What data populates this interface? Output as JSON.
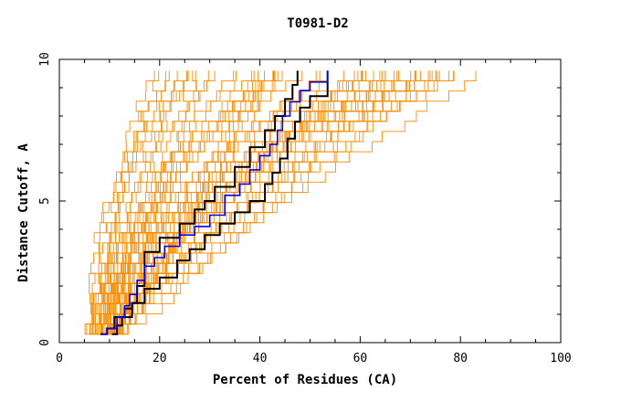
{
  "chart_data": {
    "type": "line",
    "title": "T0981-D2",
    "xlabel": "Percent of Residues (CA)",
    "ylabel": "Distance Cutoff, A",
    "xlim": [
      0,
      100
    ],
    "ylim": [
      0,
      10
    ],
    "x_ticks": [
      "0",
      "20",
      "40",
      "60",
      "80",
      "100"
    ],
    "y_ticks": [
      "0",
      "5",
      "10"
    ],
    "grid": false,
    "colors": {
      "background_curves": "#ff8c00",
      "highlight_curves": "#000000",
      "selected_curve": "#0000ff"
    },
    "series_highlight": [
      {
        "color": "#000000",
        "points": [
          [
            8.2,
            0.3
          ],
          [
            9.5,
            0.5
          ],
          [
            11,
            0.9
          ],
          [
            13,
            1.2
          ],
          [
            14.5,
            1.4
          ],
          [
            17,
            1.9
          ],
          [
            20,
            2.3
          ],
          [
            23.5,
            2.9
          ],
          [
            26,
            3.3
          ],
          [
            29,
            3.8
          ],
          [
            32,
            4.2
          ],
          [
            35,
            4.6
          ],
          [
            38,
            5.0
          ],
          [
            41,
            5.6
          ],
          [
            42.5,
            6.0
          ],
          [
            44,
            6.5
          ],
          [
            45.5,
            7.2
          ],
          [
            47,
            7.8
          ],
          [
            48,
            8.3
          ],
          [
            50,
            8.7
          ],
          [
            53.5,
            9.6
          ]
        ]
      },
      {
        "color": "#000000",
        "points": [
          [
            10.5,
            0.3
          ],
          [
            11.5,
            0.6
          ],
          [
            12.5,
            0.9
          ],
          [
            14.5,
            1.4
          ],
          [
            15.5,
            2.0
          ],
          [
            17,
            3.2
          ],
          [
            20,
            3.7
          ],
          [
            24,
            4.2
          ],
          [
            27,
            4.7
          ],
          [
            29,
            5.0
          ],
          [
            31,
            5.5
          ],
          [
            35,
            6.2
          ],
          [
            38,
            6.9
          ],
          [
            41,
            7.5
          ],
          [
            43,
            8.0
          ],
          [
            45,
            8.6
          ],
          [
            46.5,
            9.1
          ],
          [
            47.5,
            9.6
          ]
        ]
      }
    ],
    "series_selected": {
      "color": "#0000ff",
      "points": [
        [
          8.4,
          0.3
        ],
        [
          9.5,
          0.5
        ],
        [
          11.5,
          0.9
        ],
        [
          13,
          1.3
        ],
        [
          14,
          1.7
        ],
        [
          15.5,
          2.2
        ],
        [
          17,
          2.7
        ],
        [
          19,
          3.0
        ],
        [
          21,
          3.4
        ],
        [
          24,
          3.8
        ],
        [
          27,
          4.1
        ],
        [
          30,
          4.5
        ],
        [
          33,
          5.2
        ],
        [
          36,
          5.6
        ],
        [
          38,
          6.1
        ],
        [
          40,
          6.6
        ],
        [
          42,
          7.0
        ],
        [
          43.5,
          7.5
        ],
        [
          44.5,
          8.0
        ],
        [
          46,
          8.5
        ],
        [
          48,
          8.9
        ],
        [
          50,
          9.2
        ],
        [
          53.5,
          9.6
        ]
      ]
    },
    "series_background_count": 60
  }
}
